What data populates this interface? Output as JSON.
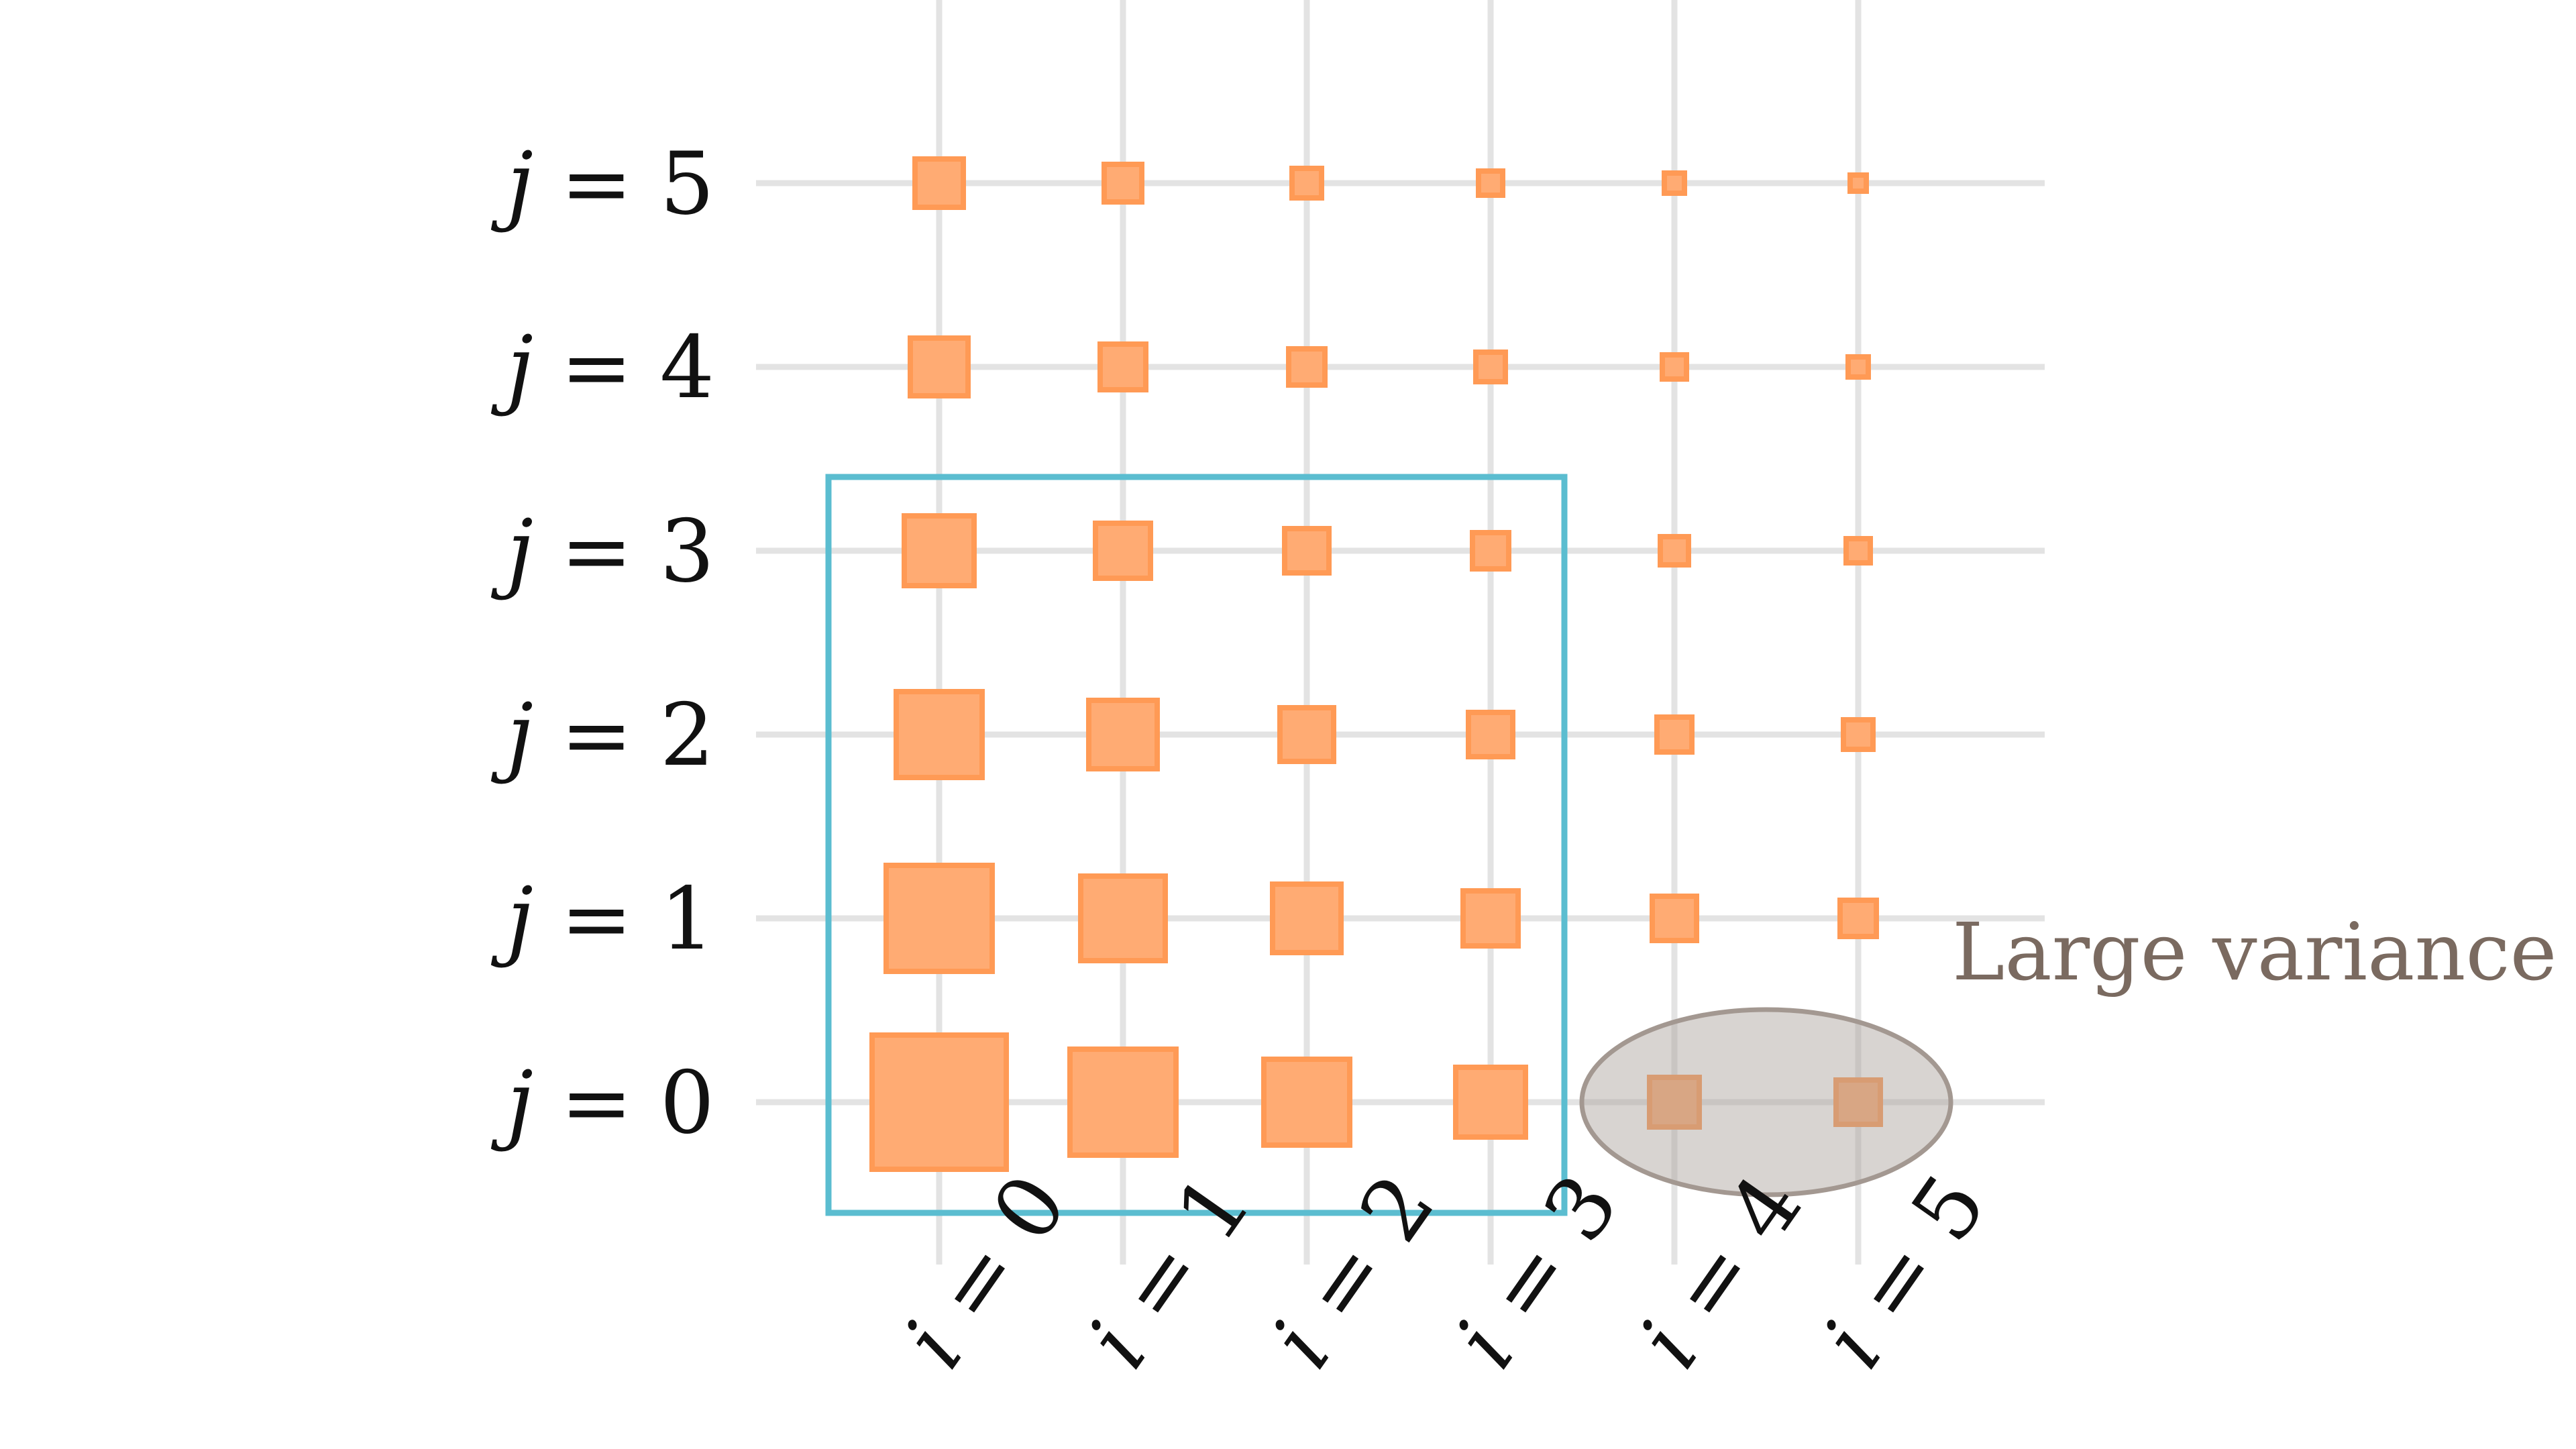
{
  "grid": {
    "i_values": [
      0,
      1,
      2,
      3,
      4,
      5
    ],
    "j_values": [
      0,
      1,
      2,
      3,
      4,
      5
    ],
    "x_label_var": "i",
    "y_label_var": "j",
    "equals": "="
  },
  "cells": [
    [
      1.0,
      0.79,
      0.64,
      0.52,
      0.37,
      0.33
    ],
    [
      0.79,
      0.63,
      0.51,
      0.41,
      0.33,
      0.27
    ],
    [
      0.64,
      0.51,
      0.4,
      0.33,
      0.26,
      0.22
    ],
    [
      0.52,
      0.41,
      0.33,
      0.27,
      0.21,
      0.18
    ],
    [
      0.43,
      0.34,
      0.27,
      0.22,
      0.18,
      0.15
    ],
    [
      0.36,
      0.28,
      0.22,
      0.18,
      0.15,
      0.12
    ]
  ],
  "highlight_box": {
    "i_range": [
      0,
      3
    ],
    "j_range": [
      0,
      3
    ]
  },
  "variance_region": {
    "i_values": [
      4,
      5
    ],
    "j": 0
  },
  "annotation": {
    "text": "Large variance"
  },
  "colors": {
    "square_fill": "#ffab73",
    "square_stroke": "#ff9a55",
    "grid_line": "#e3e3e3",
    "box_stroke": "#5bbdd0",
    "ellipse_fill": "#a99f99",
    "ellipse_stroke": "#a39891",
    "annotation_text": "#7a6a60"
  }
}
